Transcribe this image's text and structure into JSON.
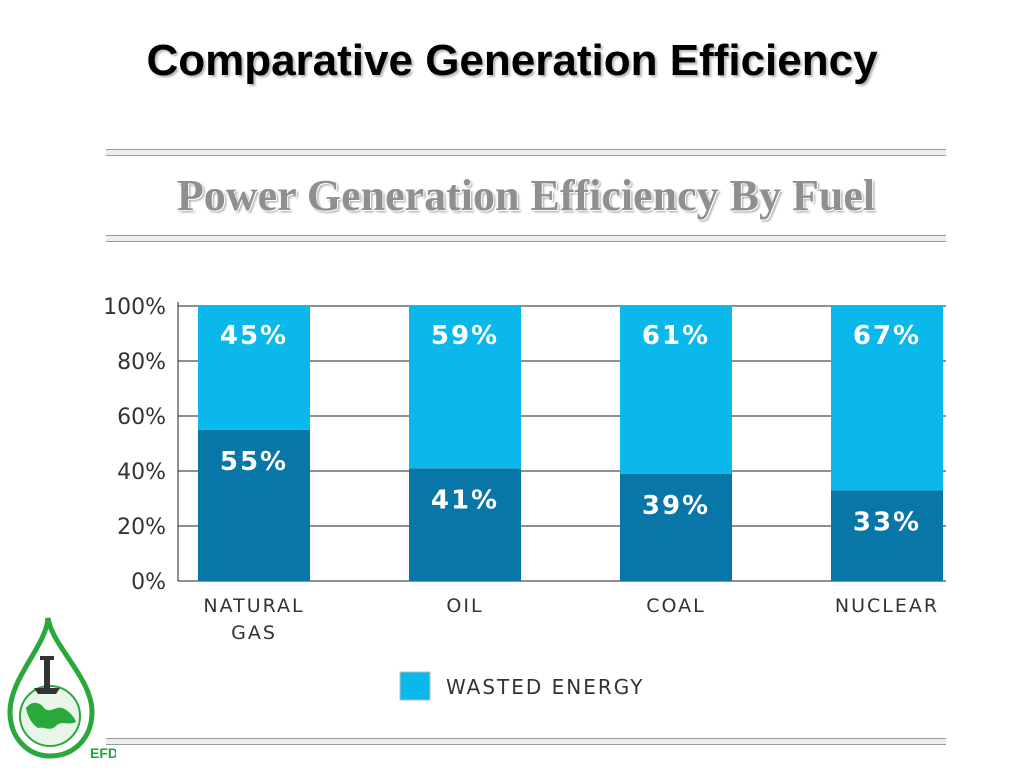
{
  "slide": {
    "title": "Comparative Generation Efficiency"
  },
  "chart_data": {
    "type": "bar",
    "stacked": true,
    "title": "Power Generation Efficiency By Fuel",
    "categories": [
      [
        "NATURAL",
        "GAS"
      ],
      [
        "OIL"
      ],
      [
        "COAL"
      ],
      [
        "NUCLEAR"
      ]
    ],
    "series": [
      {
        "values": [
          55,
          41,
          39,
          33
        ],
        "labels": [
          "55%",
          "41%",
          "39%",
          "33%"
        ],
        "color": "#0876a6"
      },
      {
        "name": "WASTED ENERGY",
        "values": [
          45,
          59,
          61,
          67
        ],
        "labels": [
          "45%",
          "59%",
          "61%",
          "67%"
        ],
        "color": "#0ab8ec"
      }
    ],
    "y_ticks": [
      "0%",
      "20%",
      "40%",
      "60%",
      "80%",
      "100%"
    ],
    "ylim": [
      0,
      100
    ],
    "grid": true,
    "legend": "bottom"
  },
  "logo": {
    "text": "EFD",
    "icon": "water-drop-globe-icon",
    "color": "#22a33a"
  }
}
